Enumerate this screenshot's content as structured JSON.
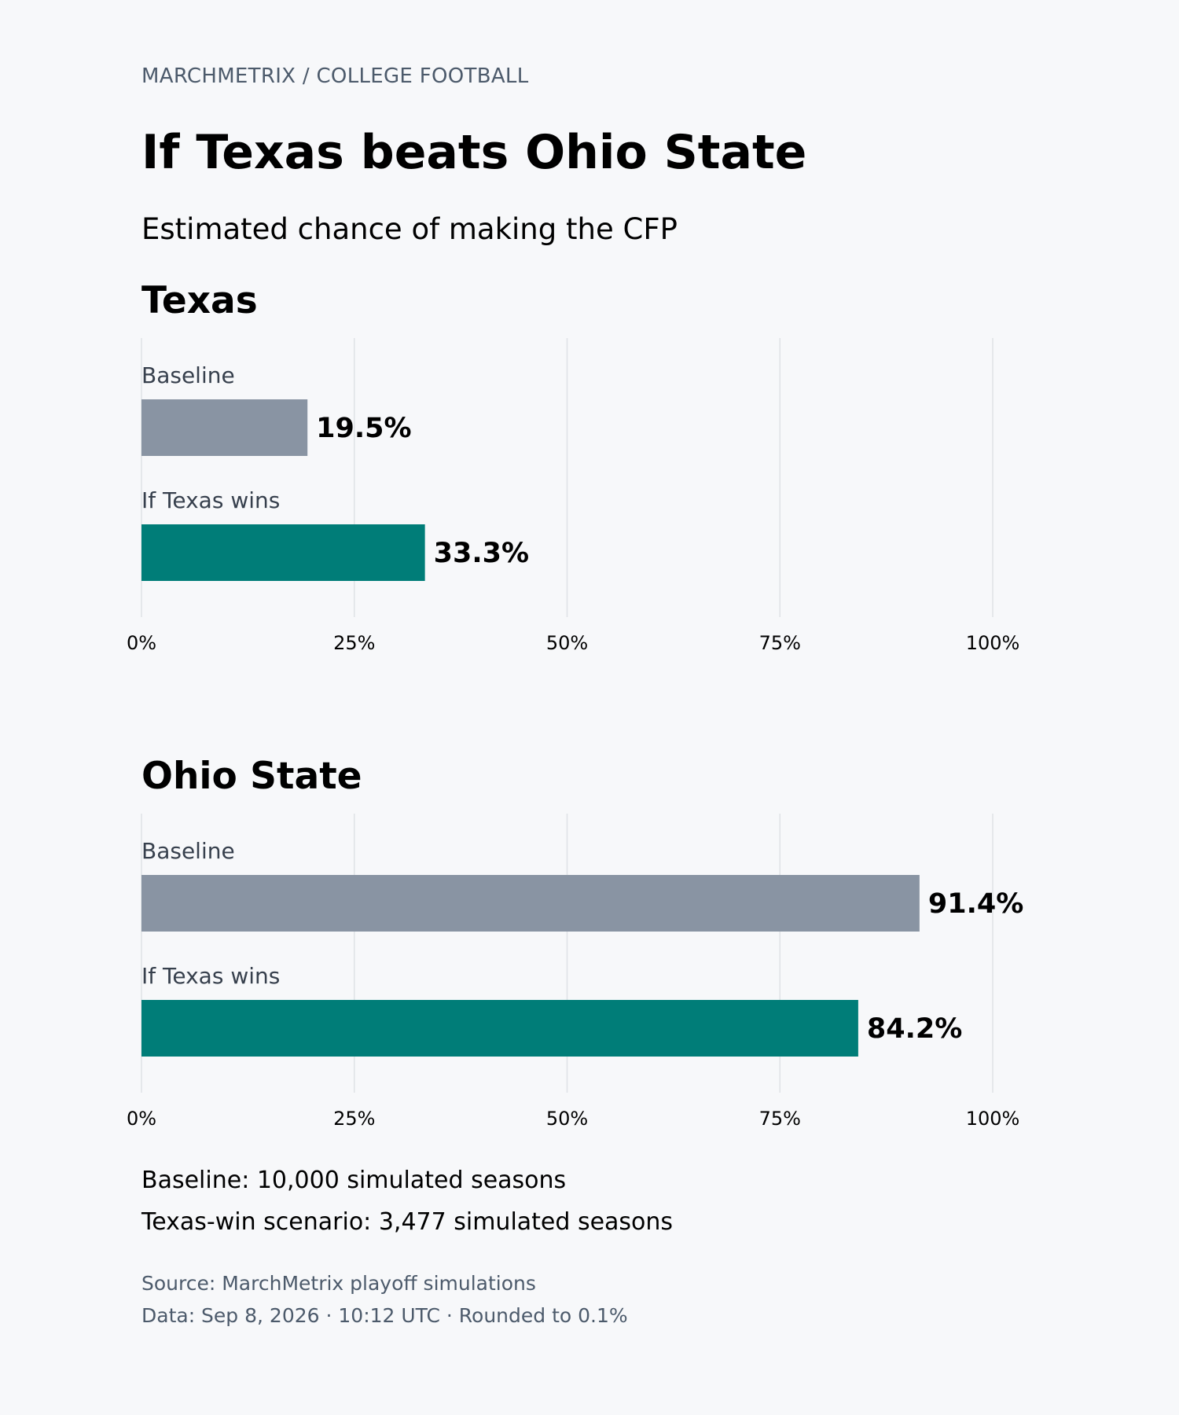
{
  "header": {
    "kicker": "MARCHMETRIX / COLLEGE FOOTBALL",
    "title": "If Texas beats Ohio State",
    "subtitle": "Estimated chance of making the CFP"
  },
  "colors": {
    "baseline": "#8994a3",
    "if_texas_wins": "#007d78"
  },
  "chart_data": [
    {
      "type": "bar",
      "orientation": "horizontal",
      "title": "Texas",
      "categories": [
        "Baseline",
        "If Texas wins"
      ],
      "values": [
        19.5,
        33.3
      ],
      "value_labels": [
        "19.5%",
        "33.3%"
      ],
      "xlim": [
        0,
        100
      ],
      "xticks": [
        0,
        25,
        50,
        75,
        100
      ],
      "xtick_labels": [
        "0%",
        "25%",
        "50%",
        "75%",
        "100%"
      ],
      "grid": true
    },
    {
      "type": "bar",
      "orientation": "horizontal",
      "title": "Ohio State",
      "categories": [
        "Baseline",
        "If Texas wins"
      ],
      "values": [
        91.4,
        84.2
      ],
      "value_labels": [
        "91.4%",
        "84.2%"
      ],
      "xlim": [
        0,
        100
      ],
      "xticks": [
        0,
        25,
        50,
        75,
        100
      ],
      "xtick_labels": [
        "0%",
        "25%",
        "50%",
        "75%",
        "100%"
      ],
      "grid": true
    }
  ],
  "notes": {
    "baseline": "Baseline: 10,000 simulated seasons",
    "scenario": "Texas-win scenario: 3,477 simulated seasons"
  },
  "footer": {
    "source": "Source: MarchMetrix playoff simulations",
    "data": "Data: Sep 8, 2026 · 10:12 UTC · Rounded to 0.1%"
  }
}
